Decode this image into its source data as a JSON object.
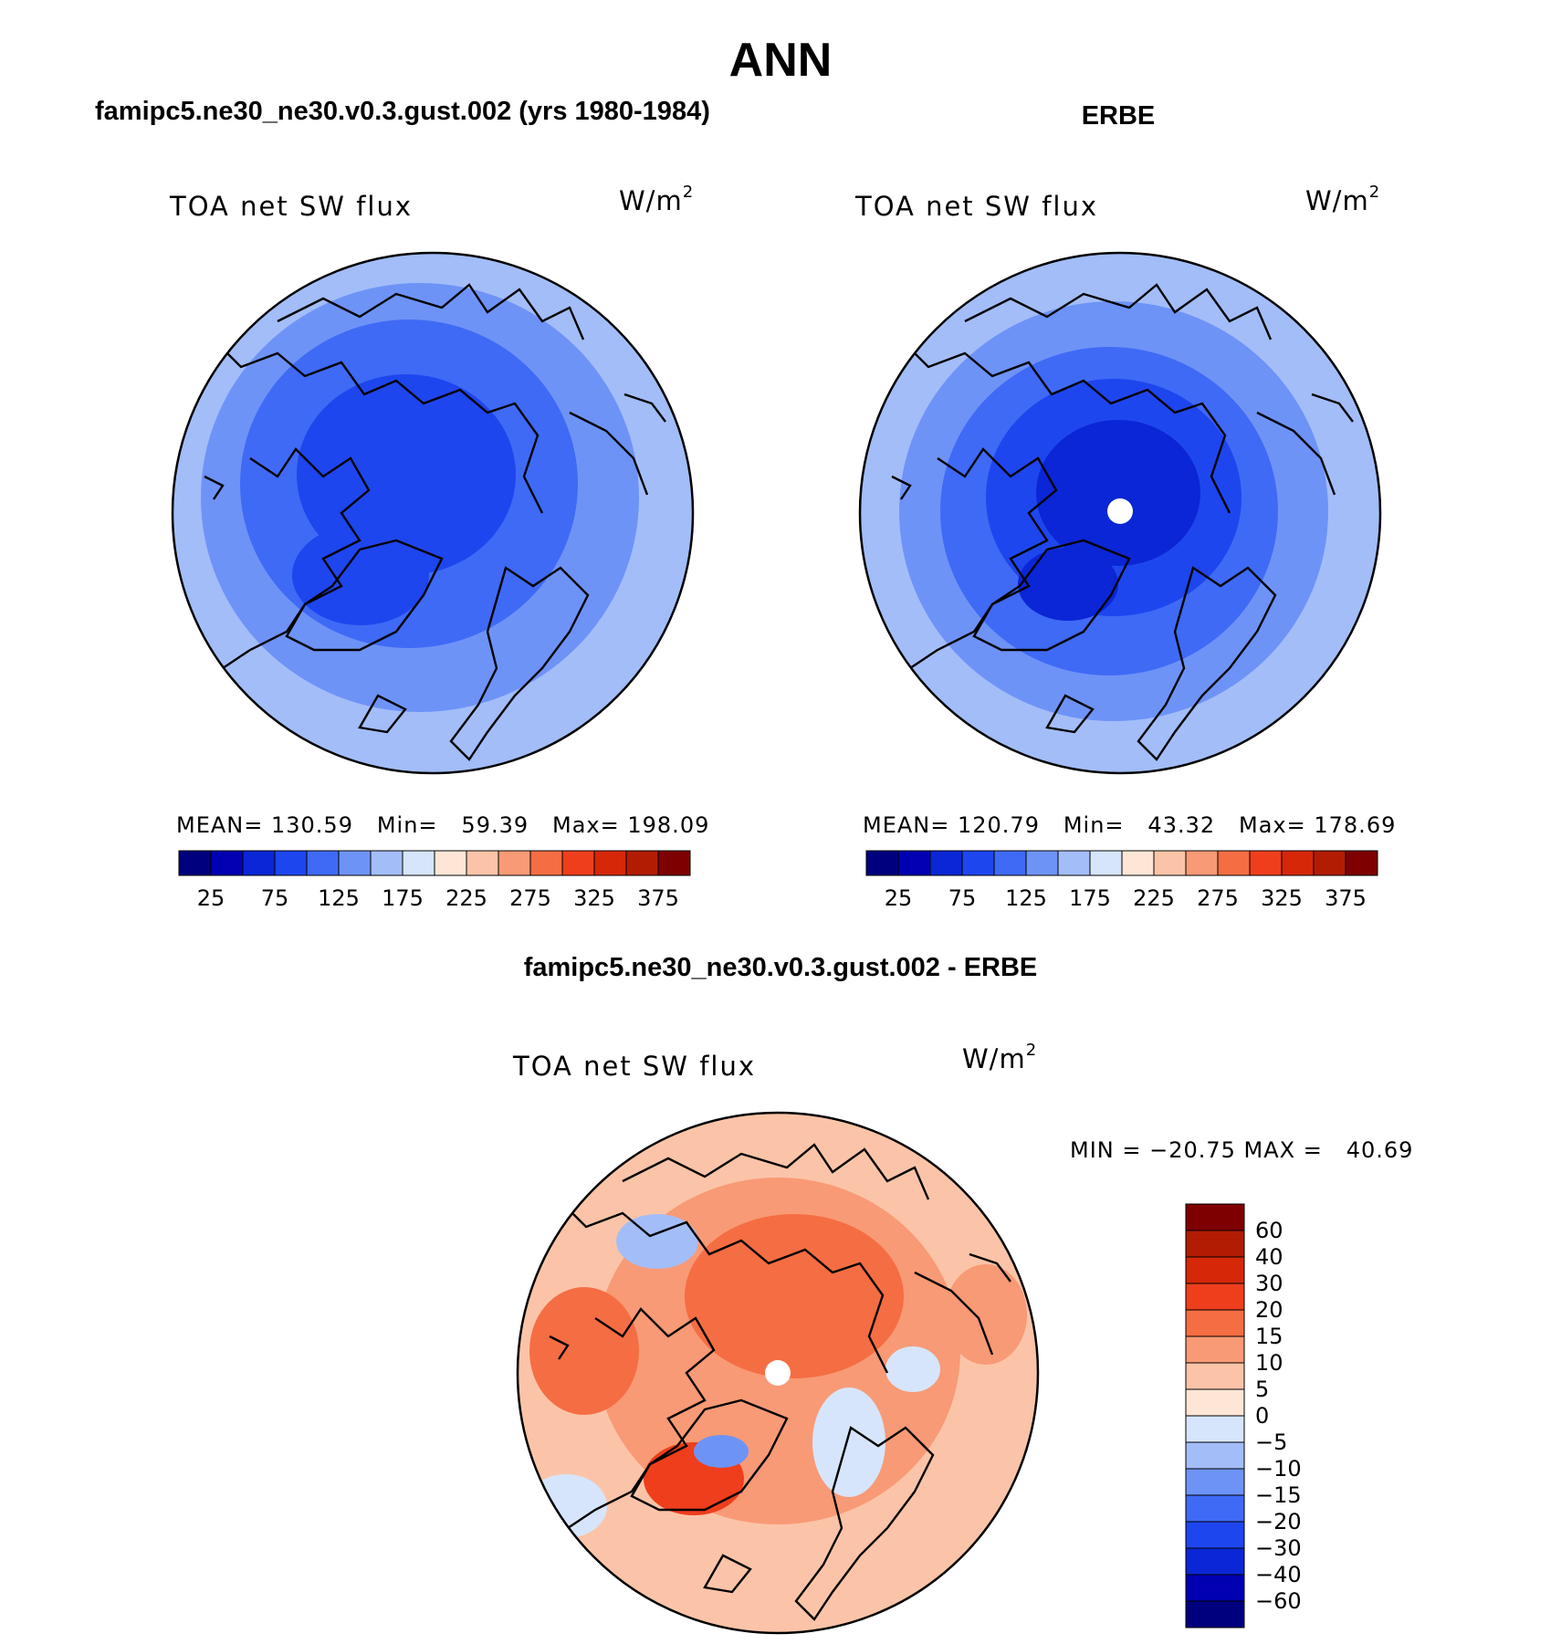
{
  "figure": {
    "title": "ANN",
    "left_panel_title": "famipc5.ne30_ne30.v0.3.gust.002 (yrs 1980-1984)",
    "right_panel_title": "ERBE",
    "diff_panel_title": "famipc5.ne30_ne30.v0.3.gust.002 - ERBE"
  },
  "panels": {
    "model": {
      "variable": "TOA net SW flux",
      "units_base": "W/m",
      "units_exp": "2",
      "stats": "MEAN= 130.59   Min=   59.39   Max= 198.09"
    },
    "obs": {
      "variable": "TOA net SW flux",
      "units_base": "W/m",
      "units_exp": "2",
      "stats": "MEAN= 120.79   Min=   43.32   Max= 178.69"
    },
    "diff": {
      "variable": "TOA net SW flux",
      "units_base": "W/m",
      "units_exp": "2",
      "stats": "MIN = −20.75 MAX =   40.69"
    }
  },
  "colorbar_abs": {
    "colors": [
      "#00007f",
      "#0000b2",
      "#0a26d6",
      "#1e46ee",
      "#3f6af5",
      "#6e93f7",
      "#a3bdf9",
      "#d6e5fb",
      "#fde6d6",
      "#fbc4a8",
      "#f89a75",
      "#f56d43",
      "#ef3e1c",
      "#d62709",
      "#b21c02",
      "#7f0000"
    ],
    "tick_labels": [
      "25",
      "75",
      "125",
      "175",
      "225",
      "275",
      "325",
      "375"
    ]
  },
  "colorbar_diff": {
    "colors": [
      "#7f0000",
      "#b21c02",
      "#d62709",
      "#ef3e1c",
      "#f56d43",
      "#f89a75",
      "#fbc4a8",
      "#fde6d6",
      "#d6e5fb",
      "#a3bdf9",
      "#6e93f7",
      "#3f6af5",
      "#1e46ee",
      "#0a26d6",
      "#0000b2",
      "#00007f"
    ],
    "tick_labels": [
      "60",
      "40",
      "30",
      "20",
      "15",
      "10",
      "5",
      "0",
      "−5",
      "−10",
      "−15",
      "−20",
      "−30",
      "−40",
      "−60"
    ]
  }
}
